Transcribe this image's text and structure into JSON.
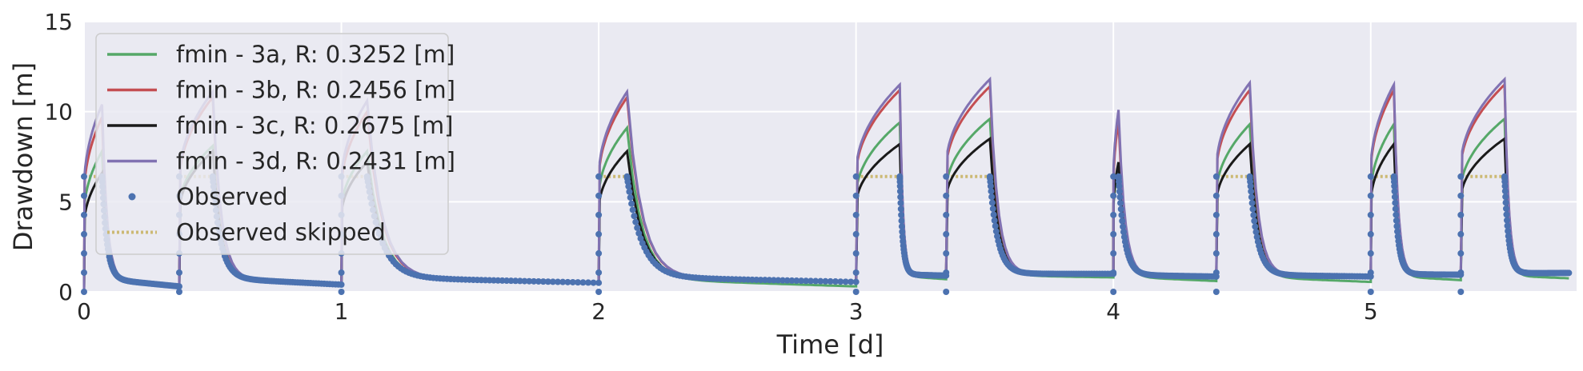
{
  "chart_data": {
    "type": "line",
    "title": "",
    "xlabel": "Time [d]",
    "ylabel": "Drawdown [m]",
    "xlim": [
      0,
      5.8
    ],
    "ylim": [
      0,
      15
    ],
    "xticks": [
      0,
      1,
      2,
      3,
      4,
      5
    ],
    "yticks": [
      0,
      5,
      10,
      15
    ],
    "grid": true,
    "legend_position": "upper-left",
    "pumping_periods": [
      {
        "start": 0.0,
        "end": 0.07
      },
      {
        "start": 0.37,
        "end": 0.5
      },
      {
        "start": 1.0,
        "end": 1.1
      },
      {
        "start": 2.0,
        "end": 2.11
      },
      {
        "start": 3.0,
        "end": 3.17
      },
      {
        "start": 3.35,
        "end": 3.52
      },
      {
        "start": 4.0,
        "end": 4.02
      },
      {
        "start": 4.4,
        "end": 4.53
      },
      {
        "start": 5.0,
        "end": 5.09
      },
      {
        "start": 5.35,
        "end": 5.52
      }
    ],
    "series": [
      {
        "name": "fmin - 3a, R: 0.3252 [m]",
        "color": "#55a868",
        "style": "solid",
        "peaks": [
          7.8,
          8.1,
          7.8,
          9.1,
          9.4,
          9.6,
          7.0,
          9.3,
          9.3,
          9.6
        ],
        "recovery_end": [
          0.35,
          0.35,
          0.45,
          0.3,
          0.7,
          0.8,
          0.6,
          0.55,
          0.65,
          0.75
        ]
      },
      {
        "name": "fmin - 3b, R: 0.2456 [m]",
        "color": "#c44e52",
        "style": "solid",
        "peaks": [
          9.7,
          10.8,
          10.0,
          10.8,
          11.2,
          11.4,
          9.5,
          11.2,
          11.2,
          11.5
        ],
        "recovery_end": [
          0.3,
          0.4,
          0.5,
          0.55,
          0.95,
          1.0,
          0.85,
          0.85,
          0.95,
          1.05
        ]
      },
      {
        "name": "fmin - 3c, R: 0.2675 [m]",
        "color": "#1a1a1a",
        "style": "solid",
        "peaks": [
          6.6,
          7.8,
          7.2,
          7.8,
          8.2,
          8.5,
          7.2,
          8.2,
          8.2,
          8.5
        ],
        "recovery_end": [
          0.3,
          0.4,
          0.5,
          0.55,
          0.9,
          1.0,
          0.85,
          0.85,
          0.95,
          1.05
        ]
      },
      {
        "name": "fmin - 3d, R: 0.2431 [m]",
        "color": "#8172b2",
        "style": "solid",
        "peaks": [
          10.4,
          11.1,
          10.6,
          11.1,
          11.5,
          11.8,
          10.1,
          11.6,
          11.5,
          11.8
        ],
        "recovery_end": [
          0.3,
          0.4,
          0.5,
          0.55,
          0.95,
          1.0,
          0.85,
          0.85,
          0.95,
          1.05
        ]
      },
      {
        "name": "Observed",
        "color": "#4c72b0",
        "style": "markers",
        "plateau": 6.4,
        "recovery_end": [
          0.3,
          0.4,
          0.5,
          0.55,
          0.9,
          1.0,
          0.85,
          0.85,
          0.95,
          1.05
        ]
      },
      {
        "name": "Observed skipped",
        "color": "#ccb974",
        "style": "dotted",
        "plateau": 6.4
      }
    ]
  }
}
